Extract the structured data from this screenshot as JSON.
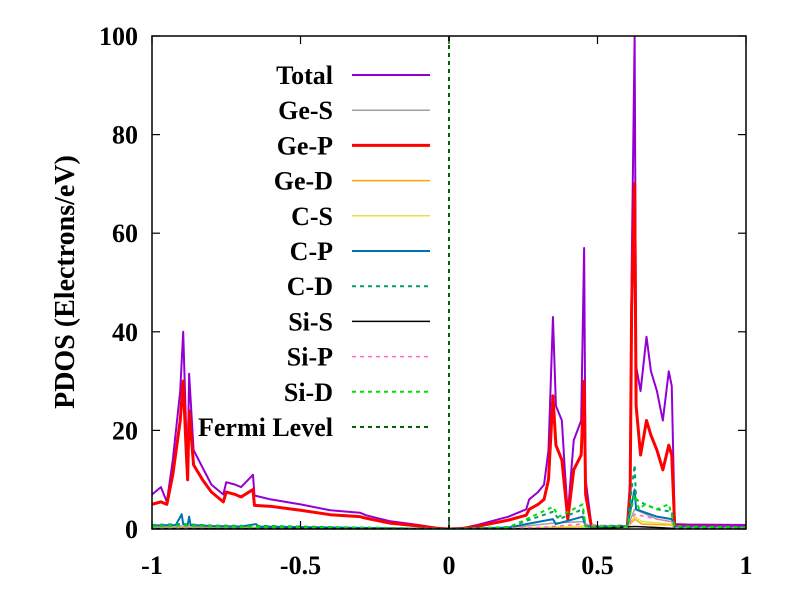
{
  "chart_data": {
    "type": "line",
    "title": "",
    "xlabel": "",
    "ylabel": "PDOS (Electrons/eV)",
    "xlim": [
      -1,
      1
    ],
    "ylim": [
      0,
      100
    ],
    "x_ticks": [
      -1,
      -0.5,
      0,
      0.5,
      1
    ],
    "x_tick_labels": [
      "-1",
      "-0.5",
      "0",
      "0.5",
      "1"
    ],
    "y_ticks": [
      0,
      20,
      40,
      60,
      80,
      100
    ],
    "y_tick_labels": [
      "0",
      "20",
      "40",
      "60",
      "80",
      "100"
    ],
    "grid": false,
    "legend_position": "upper-left",
    "fermi_level_x": 0,
    "series": [
      {
        "name": "Total",
        "color": "#9400d3",
        "dash": "solid",
        "width": 2,
        "points": [
          [
            -1,
            7
          ],
          [
            -0.97,
            8.5
          ],
          [
            -0.95,
            5.5
          ],
          [
            -0.93,
            14
          ],
          [
            -0.905,
            28
          ],
          [
            -0.895,
            40
          ],
          [
            -0.885,
            20
          ],
          [
            -0.88,
            12
          ],
          [
            -0.875,
            31.5
          ],
          [
            -0.86,
            16
          ],
          [
            -0.83,
            12.5
          ],
          [
            -0.8,
            9
          ],
          [
            -0.76,
            7
          ],
          [
            -0.75,
            9.5
          ],
          [
            -0.72,
            9
          ],
          [
            -0.7,
            8.5
          ],
          [
            -0.66,
            11
          ],
          [
            -0.655,
            6.8
          ],
          [
            -0.6,
            6
          ],
          [
            -0.5,
            5
          ],
          [
            -0.4,
            3.8
          ],
          [
            -0.3,
            3.3
          ],
          [
            -0.28,
            2.8
          ],
          [
            -0.2,
            1.6
          ],
          [
            -0.1,
            0.8
          ],
          [
            -0.04,
            0.2
          ],
          [
            0,
            0
          ],
          [
            0.05,
            0.2
          ],
          [
            0.1,
            0.9
          ],
          [
            0.2,
            2.5
          ],
          [
            0.26,
            4
          ],
          [
            0.27,
            6
          ],
          [
            0.3,
            7.5
          ],
          [
            0.32,
            9
          ],
          [
            0.335,
            16
          ],
          [
            0.35,
            43
          ],
          [
            0.36,
            25
          ],
          [
            0.38,
            22
          ],
          [
            0.39,
            12
          ],
          [
            0.4,
            3
          ],
          [
            0.42,
            18
          ],
          [
            0.445,
            22
          ],
          [
            0.455,
            57
          ],
          [
            0.46,
            10
          ],
          [
            0.48,
            0.6
          ],
          [
            0.5,
            0.5
          ],
          [
            0.6,
            0.6
          ],
          [
            0.61,
            10
          ],
          [
            0.615,
            52
          ],
          [
            0.625,
            100
          ],
          [
            0.63,
            33
          ],
          [
            0.645,
            28
          ],
          [
            0.665,
            39
          ],
          [
            0.68,
            32
          ],
          [
            0.7,
            28
          ],
          [
            0.72,
            22
          ],
          [
            0.74,
            32
          ],
          [
            0.75,
            29
          ],
          [
            0.76,
            1
          ],
          [
            0.8,
            0.9
          ],
          [
            1,
            0.8
          ]
        ]
      },
      {
        "name": "Ge-S",
        "color": "#a0a0a0",
        "dash": "solid",
        "width": 1.5,
        "points": [
          [
            -1,
            0.4
          ],
          [
            -0.9,
            0.6
          ],
          [
            -0.8,
            0.4
          ],
          [
            -0.6,
            0.3
          ],
          [
            -0.4,
            0.2
          ],
          [
            -0.2,
            0.1
          ],
          [
            0,
            0
          ],
          [
            0.2,
            0.2
          ],
          [
            0.35,
            1.2
          ],
          [
            0.45,
            1.5
          ],
          [
            0.48,
            0.3
          ],
          [
            0.6,
            0.3
          ],
          [
            0.625,
            4
          ],
          [
            0.7,
            2
          ],
          [
            0.75,
            1.5
          ],
          [
            0.76,
            0.3
          ],
          [
            1,
            0.2
          ]
        ]
      },
      {
        "name": "Ge-P",
        "color": "#ff0000",
        "dash": "solid",
        "width": 3,
        "points": [
          [
            -1,
            5
          ],
          [
            -0.97,
            5.5
          ],
          [
            -0.95,
            5
          ],
          [
            -0.93,
            11
          ],
          [
            -0.905,
            22
          ],
          [
            -0.895,
            30
          ],
          [
            -0.885,
            16
          ],
          [
            -0.88,
            10
          ],
          [
            -0.875,
            24
          ],
          [
            -0.86,
            13
          ],
          [
            -0.83,
            10
          ],
          [
            -0.8,
            7.5
          ],
          [
            -0.76,
            5.5
          ],
          [
            -0.75,
            7.5
          ],
          [
            -0.72,
            7
          ],
          [
            -0.7,
            6.5
          ],
          [
            -0.66,
            8
          ],
          [
            -0.655,
            4.8
          ],
          [
            -0.6,
            4.6
          ],
          [
            -0.5,
            3.8
          ],
          [
            -0.4,
            2.9
          ],
          [
            -0.3,
            2.5
          ],
          [
            -0.28,
            2.2
          ],
          [
            -0.2,
            1.2
          ],
          [
            -0.1,
            0.6
          ],
          [
            -0.04,
            0.15
          ],
          [
            0,
            0
          ],
          [
            0.05,
            0.15
          ],
          [
            0.1,
            0.6
          ],
          [
            0.2,
            1.8
          ],
          [
            0.26,
            2.8
          ],
          [
            0.27,
            4
          ],
          [
            0.3,
            5
          ],
          [
            0.32,
            6
          ],
          [
            0.335,
            10
          ],
          [
            0.35,
            27
          ],
          [
            0.36,
            17
          ],
          [
            0.38,
            14
          ],
          [
            0.39,
            8
          ],
          [
            0.4,
            2
          ],
          [
            0.42,
            12
          ],
          [
            0.445,
            15
          ],
          [
            0.455,
            30
          ],
          [
            0.46,
            7
          ],
          [
            0.48,
            0.3
          ],
          [
            0.6,
            0.3
          ],
          [
            0.61,
            8
          ],
          [
            0.615,
            45
          ],
          [
            0.625,
            70
          ],
          [
            0.63,
            25
          ],
          [
            0.645,
            15
          ],
          [
            0.665,
            22
          ],
          [
            0.68,
            19
          ],
          [
            0.7,
            16
          ],
          [
            0.72,
            12
          ],
          [
            0.74,
            17
          ],
          [
            0.75,
            15
          ],
          [
            0.76,
            0.5
          ],
          [
            1,
            0.3
          ]
        ]
      },
      {
        "name": "Ge-D",
        "color": "#ffa500",
        "dash": "solid",
        "width": 1.5,
        "points": [
          [
            -1,
            0.2
          ],
          [
            -0.8,
            0.2
          ],
          [
            -0.4,
            0.1
          ],
          [
            0,
            0
          ],
          [
            0.3,
            0.2
          ],
          [
            0.45,
            0.5
          ],
          [
            0.6,
            0.2
          ],
          [
            0.625,
            2
          ],
          [
            0.65,
            1
          ],
          [
            0.75,
            0.8
          ],
          [
            0.76,
            0.1
          ],
          [
            1,
            0.1
          ]
        ]
      },
      {
        "name": "C-S",
        "color": "#e8e040",
        "dash": "solid",
        "width": 1.5,
        "points": [
          [
            -1,
            0.3
          ],
          [
            -0.8,
            0.3
          ],
          [
            -0.4,
            0.2
          ],
          [
            0,
            0
          ],
          [
            0.3,
            0.3
          ],
          [
            0.45,
            0.6
          ],
          [
            0.6,
            0.3
          ],
          [
            0.625,
            2.5
          ],
          [
            0.65,
            1.5
          ],
          [
            0.75,
            1
          ],
          [
            0.76,
            0.2
          ],
          [
            1,
            0.2
          ]
        ]
      },
      {
        "name": "C-P",
        "color": "#0072b2",
        "dash": "solid",
        "width": 2,
        "points": [
          [
            -1,
            0.7
          ],
          [
            -0.92,
            0.8
          ],
          [
            -0.9,
            3
          ],
          [
            -0.895,
            1
          ],
          [
            -0.88,
            0.8
          ],
          [
            -0.875,
            2.5
          ],
          [
            -0.87,
            0.8
          ],
          [
            -0.8,
            0.6
          ],
          [
            -0.7,
            0.5
          ],
          [
            -0.65,
            1
          ],
          [
            -0.64,
            0.5
          ],
          [
            -0.4,
            0.3
          ],
          [
            -0.2,
            0.15
          ],
          [
            0,
            0
          ],
          [
            0.2,
            0.3
          ],
          [
            0.35,
            2
          ],
          [
            0.36,
            1
          ],
          [
            0.45,
            2.5
          ],
          [
            0.46,
            0.5
          ],
          [
            0.6,
            0.5
          ],
          [
            0.625,
            8
          ],
          [
            0.63,
            4
          ],
          [
            0.7,
            2.5
          ],
          [
            0.75,
            2
          ],
          [
            0.76,
            0.4
          ],
          [
            1,
            0.3
          ]
        ]
      },
      {
        "name": "C-D",
        "color": "#009e73",
        "dash": "dashed",
        "width": 2,
        "points": [
          [
            -1,
            0.8
          ],
          [
            -0.9,
            1
          ],
          [
            -0.8,
            0.7
          ],
          [
            -0.6,
            0.6
          ],
          [
            -0.4,
            0.4
          ],
          [
            -0.2,
            0.2
          ],
          [
            0,
            0
          ],
          [
            0.2,
            0.4
          ],
          [
            0.35,
            3.5
          ],
          [
            0.37,
            2
          ],
          [
            0.45,
            4
          ],
          [
            0.46,
            0.6
          ],
          [
            0.6,
            0.7
          ],
          [
            0.625,
            13
          ],
          [
            0.63,
            6
          ],
          [
            0.66,
            5
          ],
          [
            0.7,
            4
          ],
          [
            0.75,
            3.5
          ],
          [
            0.76,
            0.5
          ],
          [
            1,
            0.4
          ]
        ]
      },
      {
        "name": "Si-S",
        "color": "#000000",
        "dash": "solid",
        "width": 1.5,
        "points": [
          [
            -1,
            0.1
          ],
          [
            -0.5,
            0.1
          ],
          [
            0,
            0
          ],
          [
            0.5,
            0.1
          ],
          [
            0.625,
            0.5
          ],
          [
            0.7,
            0.3
          ],
          [
            0.76,
            0.1
          ],
          [
            1,
            0.1
          ]
        ]
      },
      {
        "name": "Si-P",
        "color": "#ff66cc",
        "dash": "dashed",
        "width": 1.5,
        "points": [
          [
            -1,
            0.2
          ],
          [
            -0.8,
            0.3
          ],
          [
            -0.4,
            0.2
          ],
          [
            0,
            0
          ],
          [
            0.3,
            0.3
          ],
          [
            0.45,
            1
          ],
          [
            0.6,
            0.3
          ],
          [
            0.625,
            3
          ],
          [
            0.7,
            2
          ],
          [
            0.75,
            1.5
          ],
          [
            0.76,
            0.2
          ],
          [
            1,
            0.2
          ]
        ]
      },
      {
        "name": "Si-D",
        "color": "#00e000",
        "dash": "dashed",
        "width": 2,
        "points": [
          [
            -1,
            0.5
          ],
          [
            -0.9,
            0.7
          ],
          [
            -0.8,
            0.5
          ],
          [
            -0.6,
            0.4
          ],
          [
            -0.4,
            0.3
          ],
          [
            -0.2,
            0.15
          ],
          [
            0,
            0
          ],
          [
            0.2,
            0.3
          ],
          [
            0.35,
            4.5
          ],
          [
            0.37,
            2.5
          ],
          [
            0.45,
            5
          ],
          [
            0.46,
            0.5
          ],
          [
            0.6,
            0.5
          ],
          [
            0.625,
            7
          ],
          [
            0.64,
            4
          ],
          [
            0.66,
            5
          ],
          [
            0.7,
            4
          ],
          [
            0.74,
            5
          ],
          [
            0.76,
            0.5
          ],
          [
            1,
            0.3
          ]
        ]
      },
      {
        "name": "Fermi Level",
        "color": "#006400",
        "dash": "dashed",
        "width": 2,
        "points": [
          [
            0,
            0
          ],
          [
            0,
            100
          ]
        ]
      }
    ]
  }
}
